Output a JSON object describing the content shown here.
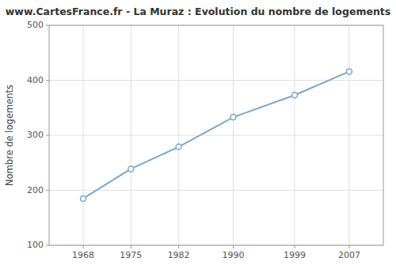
{
  "chart_data": {
    "type": "line",
    "title": "www.CartesFrance.fr - La Muraz : Evolution du nombre de logements",
    "ylabel": "Nombre de logements",
    "x": [
      1968,
      1975,
      1982,
      1990,
      1999,
      2007
    ],
    "values": [
      185,
      239,
      279,
      333,
      373,
      416
    ],
    "xlim": [
      1963,
      2012
    ],
    "ylim": [
      100,
      500
    ],
    "xticks": [
      1968,
      1975,
      1982,
      1990,
      1999,
      2007
    ],
    "yticks": [
      100,
      200,
      300,
      400,
      500
    ],
    "color": "#7ba7c9",
    "marker": "circle",
    "line_style": "solid",
    "grid": true
  }
}
